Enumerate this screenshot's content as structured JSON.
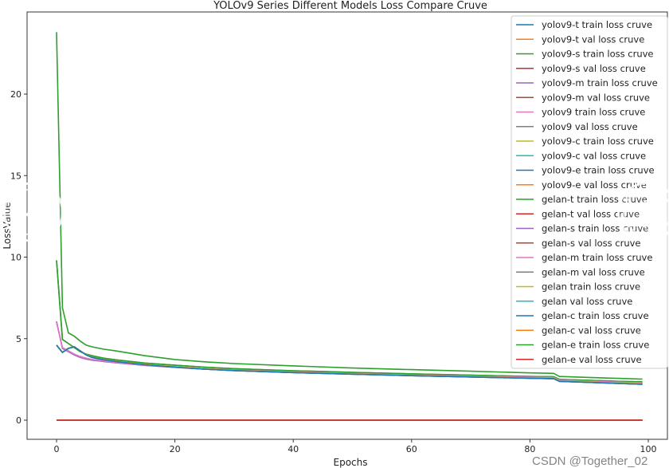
{
  "chart_data": {
    "type": "line",
    "title": "YOLOv9 Series Different Models Loss Compare Cruve",
    "xlabel": "Epochs",
    "ylabel": "LossValue",
    "xlim": [
      -5,
      103
    ],
    "ylim": [
      -1.2,
      24.8
    ],
    "xticks": [
      0,
      20,
      40,
      60,
      80,
      100
    ],
    "yticks": [
      0,
      5,
      10,
      15,
      20
    ],
    "grid": false,
    "legend_position": "top-right",
    "x": [
      0,
      1,
      2,
      3,
      4,
      5,
      6,
      8,
      10,
      15,
      20,
      25,
      30,
      40,
      50,
      60,
      70,
      80,
      84,
      85,
      90,
      95,
      99
    ],
    "series": [
      {
        "name": "yolov9-t train loss cruve",
        "color": "#1f77b4",
        "values": [
          4.6,
          4.15,
          4.4,
          4.5,
          4.25,
          4.0,
          3.85,
          3.7,
          3.6,
          3.4,
          3.25,
          3.13,
          3.04,
          2.92,
          2.82,
          2.73,
          2.65,
          2.57,
          2.55,
          2.38,
          2.32,
          2.25,
          2.2
        ]
      },
      {
        "name": "yolov9-t val loss cruve",
        "color": "#ff7f0e",
        "values": [
          0,
          0,
          0,
          0,
          0,
          0,
          0,
          0,
          0,
          0,
          0,
          0,
          0,
          0,
          0,
          0,
          0,
          0,
          0,
          0,
          0,
          0,
          0
        ]
      },
      {
        "name": "yolov9-s train loss cruve",
        "color": "#2ca02c",
        "values": [
          9.8,
          4.95,
          4.7,
          4.45,
          4.2,
          4.05,
          3.95,
          3.8,
          3.7,
          3.5,
          3.37,
          3.25,
          3.16,
          3.03,
          2.93,
          2.84,
          2.76,
          2.68,
          2.66,
          2.5,
          2.44,
          2.38,
          2.35
        ]
      },
      {
        "name": "yolov9-s val loss cruve",
        "color": "#d62728",
        "values": [
          0,
          0,
          0,
          0,
          0,
          0,
          0,
          0,
          0,
          0,
          0,
          0,
          0,
          0,
          0,
          0,
          0,
          0,
          0,
          0,
          0,
          0,
          0
        ]
      },
      {
        "name": "yolov9-m train loss cruve",
        "color": "#9467bd",
        "values": [
          6.05,
          4.4,
          4.2,
          4.0,
          3.85,
          3.75,
          3.68,
          3.6,
          3.52,
          3.36,
          3.24,
          3.13,
          3.05,
          2.93,
          2.83,
          2.74,
          2.67,
          2.6,
          2.58,
          2.42,
          2.36,
          2.3,
          2.27
        ]
      },
      {
        "name": "yolov9-m val loss cruve",
        "color": "#8c564b",
        "values": [
          0,
          0,
          0,
          0,
          0,
          0,
          0,
          0,
          0,
          0,
          0,
          0,
          0,
          0,
          0,
          0,
          0,
          0,
          0,
          0,
          0,
          0,
          0
        ]
      },
      {
        "name": "yolov9 train loss cruve",
        "color": "#e377c2",
        "values": [
          6.0,
          4.45,
          4.25,
          4.05,
          3.9,
          3.8,
          3.72,
          3.63,
          3.55,
          3.38,
          3.27,
          3.16,
          3.08,
          2.96,
          2.86,
          2.77,
          2.7,
          2.63,
          2.61,
          2.45,
          2.39,
          2.33,
          2.3
        ]
      },
      {
        "name": "yolov9 val loss cruve",
        "color": "#7f7f7f",
        "values": [
          0,
          0,
          0,
          0,
          0,
          0,
          0,
          0,
          0,
          0,
          0,
          0,
          0,
          0,
          0,
          0,
          0,
          0,
          0,
          0,
          0,
          0,
          0
        ]
      },
      {
        "name": "yolov9-c train loss cruve",
        "color": "#bcbd22",
        "values": [
          4.6,
          4.17,
          4.42,
          4.5,
          4.26,
          4.02,
          3.87,
          3.72,
          3.62,
          3.42,
          3.27,
          3.15,
          3.06,
          2.94,
          2.84,
          2.75,
          2.67,
          2.59,
          2.57,
          2.4,
          2.34,
          2.27,
          2.22
        ]
      },
      {
        "name": "yolov9-c val loss cruve",
        "color": "#17becf",
        "values": [
          0,
          0,
          0,
          0,
          0,
          0,
          0,
          0,
          0,
          0,
          0,
          0,
          0,
          0,
          0,
          0,
          0,
          0,
          0,
          0,
          0,
          0,
          0
        ]
      },
      {
        "name": "yolov9-e train loss cruve",
        "color": "#1f77b4",
        "values": [
          4.6,
          4.15,
          4.4,
          4.5,
          4.25,
          4.0,
          3.85,
          3.7,
          3.6,
          3.4,
          3.25,
          3.13,
          3.04,
          2.92,
          2.82,
          2.73,
          2.65,
          2.57,
          2.55,
          2.38,
          2.32,
          2.25,
          2.2
        ]
      },
      {
        "name": "yolov9-e val loss cruve",
        "color": "#ff7f0e",
        "values": [
          0,
          0,
          0,
          0,
          0,
          0,
          0,
          0,
          0,
          0,
          0,
          0,
          0,
          0,
          0,
          0,
          0,
          0,
          0,
          0,
          0,
          0,
          0
        ]
      },
      {
        "name": "gelan-t train loss cruve",
        "color": "#2ca02c",
        "values": [
          9.8,
          4.95,
          4.7,
          4.45,
          4.2,
          4.05,
          3.95,
          3.8,
          3.7,
          3.5,
          3.37,
          3.25,
          3.16,
          3.03,
          2.93,
          2.84,
          2.76,
          2.68,
          2.66,
          2.5,
          2.44,
          2.38,
          2.35
        ]
      },
      {
        "name": "gelan-t val loss cruve",
        "color": "#d62728",
        "values": [
          0,
          0,
          0,
          0,
          0,
          0,
          0,
          0,
          0,
          0,
          0,
          0,
          0,
          0,
          0,
          0,
          0,
          0,
          0,
          0,
          0,
          0,
          0
        ]
      },
      {
        "name": "gelan-s train loss cruve",
        "color": "#9467bd",
        "values": [
          6.05,
          4.4,
          4.2,
          4.0,
          3.85,
          3.75,
          3.68,
          3.6,
          3.52,
          3.36,
          3.24,
          3.13,
          3.05,
          2.93,
          2.83,
          2.74,
          2.67,
          2.6,
          2.58,
          2.42,
          2.36,
          2.3,
          2.27
        ]
      },
      {
        "name": "gelan-s val loss cruve",
        "color": "#8c564b",
        "values": [
          0,
          0,
          0,
          0,
          0,
          0,
          0,
          0,
          0,
          0,
          0,
          0,
          0,
          0,
          0,
          0,
          0,
          0,
          0,
          0,
          0,
          0,
          0
        ]
      },
      {
        "name": "gelan-m train loss cruve",
        "color": "#e377c2",
        "values": [
          6.0,
          4.45,
          4.25,
          4.05,
          3.9,
          3.8,
          3.72,
          3.63,
          3.55,
          3.38,
          3.27,
          3.16,
          3.08,
          2.96,
          2.86,
          2.77,
          2.7,
          2.63,
          2.61,
          2.45,
          2.39,
          2.33,
          2.3
        ]
      },
      {
        "name": "gelan-m val loss cruve",
        "color": "#7f7f7f",
        "values": [
          0,
          0,
          0,
          0,
          0,
          0,
          0,
          0,
          0,
          0,
          0,
          0,
          0,
          0,
          0,
          0,
          0,
          0,
          0,
          0,
          0,
          0,
          0
        ]
      },
      {
        "name": "gelan train loss cruve",
        "color": "#bcbd22",
        "values": [
          4.6,
          4.17,
          4.42,
          4.5,
          4.26,
          4.02,
          3.87,
          3.72,
          3.62,
          3.42,
          3.27,
          3.15,
          3.06,
          2.94,
          2.84,
          2.75,
          2.67,
          2.59,
          2.57,
          2.4,
          2.34,
          2.27,
          2.22
        ]
      },
      {
        "name": "gelan val loss cruve",
        "color": "#17becf",
        "values": [
          0,
          0,
          0,
          0,
          0,
          0,
          0,
          0,
          0,
          0,
          0,
          0,
          0,
          0,
          0,
          0,
          0,
          0,
          0,
          0,
          0,
          0,
          0
        ]
      },
      {
        "name": "gelan-c train loss cruve",
        "color": "#1f77b4",
        "values": [
          4.6,
          4.15,
          4.4,
          4.5,
          4.25,
          4.0,
          3.85,
          3.7,
          3.6,
          3.4,
          3.25,
          3.13,
          3.04,
          2.92,
          2.82,
          2.73,
          2.65,
          2.57,
          2.55,
          2.38,
          2.32,
          2.25,
          2.2
        ]
      },
      {
        "name": "gelan-c val loss cruve",
        "color": "#ff7f0e",
        "values": [
          0,
          0,
          0,
          0,
          0,
          0,
          0,
          0,
          0,
          0,
          0,
          0,
          0,
          0,
          0,
          0,
          0,
          0,
          0,
          0,
          0,
          0,
          0
        ]
      },
      {
        "name": "gelan-e train loss cruve",
        "color": "#2ca02c",
        "values": [
          23.8,
          6.9,
          5.35,
          5.15,
          4.85,
          4.6,
          4.5,
          4.35,
          4.25,
          3.95,
          3.72,
          3.58,
          3.47,
          3.33,
          3.2,
          3.1,
          3.0,
          2.9,
          2.87,
          2.68,
          2.62,
          2.56,
          2.52
        ]
      },
      {
        "name": "gelan-e val loss cruve",
        "color": "#d62728",
        "values": [
          0,
          0,
          0,
          0,
          0,
          0,
          0,
          0,
          0,
          0,
          0,
          0,
          0,
          0,
          0,
          0,
          0,
          0,
          0,
          0,
          0,
          0,
          0
        ]
      }
    ]
  },
  "overlay": {
    "prev_icon": "chevron-left-icon",
    "next_icon": "chevron-right-icon",
    "watermark": "CSDN @Together_02"
  }
}
